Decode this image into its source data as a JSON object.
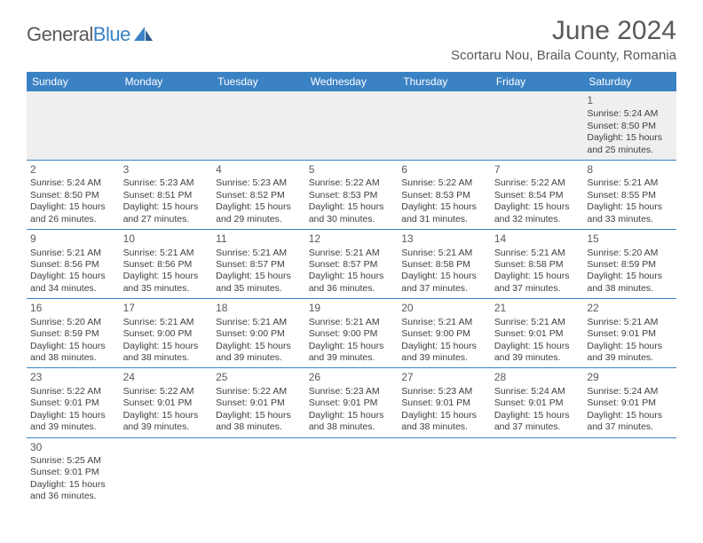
{
  "brand": {
    "name_part1": "General",
    "name_part2": "Blue"
  },
  "title": "June 2024",
  "location": "Scortaru Nou, Braila County, Romania",
  "colors": {
    "header_bg": "#3b82c4",
    "header_text": "#ffffff",
    "border": "#3b82c4",
    "text": "#404040",
    "muted": "#595959",
    "alt_row_bg": "#efefef"
  },
  "typography": {
    "title_fontsize": 30,
    "location_fontsize": 15,
    "dayhead_fontsize": 12,
    "cell_fontsize": 10.5
  },
  "day_headers": [
    "Sunday",
    "Monday",
    "Tuesday",
    "Wednesday",
    "Thursday",
    "Friday",
    "Saturday"
  ],
  "weeks": [
    [
      null,
      null,
      null,
      null,
      null,
      null,
      {
        "n": "1",
        "sr": "Sunrise: 5:24 AM",
        "ss": "Sunset: 8:50 PM",
        "d1": "Daylight: 15 hours",
        "d2": "and 25 minutes."
      }
    ],
    [
      {
        "n": "2",
        "sr": "Sunrise: 5:24 AM",
        "ss": "Sunset: 8:50 PM",
        "d1": "Daylight: 15 hours",
        "d2": "and 26 minutes."
      },
      {
        "n": "3",
        "sr": "Sunrise: 5:23 AM",
        "ss": "Sunset: 8:51 PM",
        "d1": "Daylight: 15 hours",
        "d2": "and 27 minutes."
      },
      {
        "n": "4",
        "sr": "Sunrise: 5:23 AM",
        "ss": "Sunset: 8:52 PM",
        "d1": "Daylight: 15 hours",
        "d2": "and 29 minutes."
      },
      {
        "n": "5",
        "sr": "Sunrise: 5:22 AM",
        "ss": "Sunset: 8:53 PM",
        "d1": "Daylight: 15 hours",
        "d2": "and 30 minutes."
      },
      {
        "n": "6",
        "sr": "Sunrise: 5:22 AM",
        "ss": "Sunset: 8:53 PM",
        "d1": "Daylight: 15 hours",
        "d2": "and 31 minutes."
      },
      {
        "n": "7",
        "sr": "Sunrise: 5:22 AM",
        "ss": "Sunset: 8:54 PM",
        "d1": "Daylight: 15 hours",
        "d2": "and 32 minutes."
      },
      {
        "n": "8",
        "sr": "Sunrise: 5:21 AM",
        "ss": "Sunset: 8:55 PM",
        "d1": "Daylight: 15 hours",
        "d2": "and 33 minutes."
      }
    ],
    [
      {
        "n": "9",
        "sr": "Sunrise: 5:21 AM",
        "ss": "Sunset: 8:56 PM",
        "d1": "Daylight: 15 hours",
        "d2": "and 34 minutes."
      },
      {
        "n": "10",
        "sr": "Sunrise: 5:21 AM",
        "ss": "Sunset: 8:56 PM",
        "d1": "Daylight: 15 hours",
        "d2": "and 35 minutes."
      },
      {
        "n": "11",
        "sr": "Sunrise: 5:21 AM",
        "ss": "Sunset: 8:57 PM",
        "d1": "Daylight: 15 hours",
        "d2": "and 35 minutes."
      },
      {
        "n": "12",
        "sr": "Sunrise: 5:21 AM",
        "ss": "Sunset: 8:57 PM",
        "d1": "Daylight: 15 hours",
        "d2": "and 36 minutes."
      },
      {
        "n": "13",
        "sr": "Sunrise: 5:21 AM",
        "ss": "Sunset: 8:58 PM",
        "d1": "Daylight: 15 hours",
        "d2": "and 37 minutes."
      },
      {
        "n": "14",
        "sr": "Sunrise: 5:21 AM",
        "ss": "Sunset: 8:58 PM",
        "d1": "Daylight: 15 hours",
        "d2": "and 37 minutes."
      },
      {
        "n": "15",
        "sr": "Sunrise: 5:20 AM",
        "ss": "Sunset: 8:59 PM",
        "d1": "Daylight: 15 hours",
        "d2": "and 38 minutes."
      }
    ],
    [
      {
        "n": "16",
        "sr": "Sunrise: 5:20 AM",
        "ss": "Sunset: 8:59 PM",
        "d1": "Daylight: 15 hours",
        "d2": "and 38 minutes."
      },
      {
        "n": "17",
        "sr": "Sunrise: 5:21 AM",
        "ss": "Sunset: 9:00 PM",
        "d1": "Daylight: 15 hours",
        "d2": "and 38 minutes."
      },
      {
        "n": "18",
        "sr": "Sunrise: 5:21 AM",
        "ss": "Sunset: 9:00 PM",
        "d1": "Daylight: 15 hours",
        "d2": "and 39 minutes."
      },
      {
        "n": "19",
        "sr": "Sunrise: 5:21 AM",
        "ss": "Sunset: 9:00 PM",
        "d1": "Daylight: 15 hours",
        "d2": "and 39 minutes."
      },
      {
        "n": "20",
        "sr": "Sunrise: 5:21 AM",
        "ss": "Sunset: 9:00 PM",
        "d1": "Daylight: 15 hours",
        "d2": "and 39 minutes."
      },
      {
        "n": "21",
        "sr": "Sunrise: 5:21 AM",
        "ss": "Sunset: 9:01 PM",
        "d1": "Daylight: 15 hours",
        "d2": "and 39 minutes."
      },
      {
        "n": "22",
        "sr": "Sunrise: 5:21 AM",
        "ss": "Sunset: 9:01 PM",
        "d1": "Daylight: 15 hours",
        "d2": "and 39 minutes."
      }
    ],
    [
      {
        "n": "23",
        "sr": "Sunrise: 5:22 AM",
        "ss": "Sunset: 9:01 PM",
        "d1": "Daylight: 15 hours",
        "d2": "and 39 minutes."
      },
      {
        "n": "24",
        "sr": "Sunrise: 5:22 AM",
        "ss": "Sunset: 9:01 PM",
        "d1": "Daylight: 15 hours",
        "d2": "and 39 minutes."
      },
      {
        "n": "25",
        "sr": "Sunrise: 5:22 AM",
        "ss": "Sunset: 9:01 PM",
        "d1": "Daylight: 15 hours",
        "d2": "and 38 minutes."
      },
      {
        "n": "26",
        "sr": "Sunrise: 5:23 AM",
        "ss": "Sunset: 9:01 PM",
        "d1": "Daylight: 15 hours",
        "d2": "and 38 minutes."
      },
      {
        "n": "27",
        "sr": "Sunrise: 5:23 AM",
        "ss": "Sunset: 9:01 PM",
        "d1": "Daylight: 15 hours",
        "d2": "and 38 minutes."
      },
      {
        "n": "28",
        "sr": "Sunrise: 5:24 AM",
        "ss": "Sunset: 9:01 PM",
        "d1": "Daylight: 15 hours",
        "d2": "and 37 minutes."
      },
      {
        "n": "29",
        "sr": "Sunrise: 5:24 AM",
        "ss": "Sunset: 9:01 PM",
        "d1": "Daylight: 15 hours",
        "d2": "and 37 minutes."
      }
    ],
    [
      {
        "n": "30",
        "sr": "Sunrise: 5:25 AM",
        "ss": "Sunset: 9:01 PM",
        "d1": "Daylight: 15 hours",
        "d2": "and 36 minutes."
      },
      null,
      null,
      null,
      null,
      null,
      null
    ]
  ]
}
